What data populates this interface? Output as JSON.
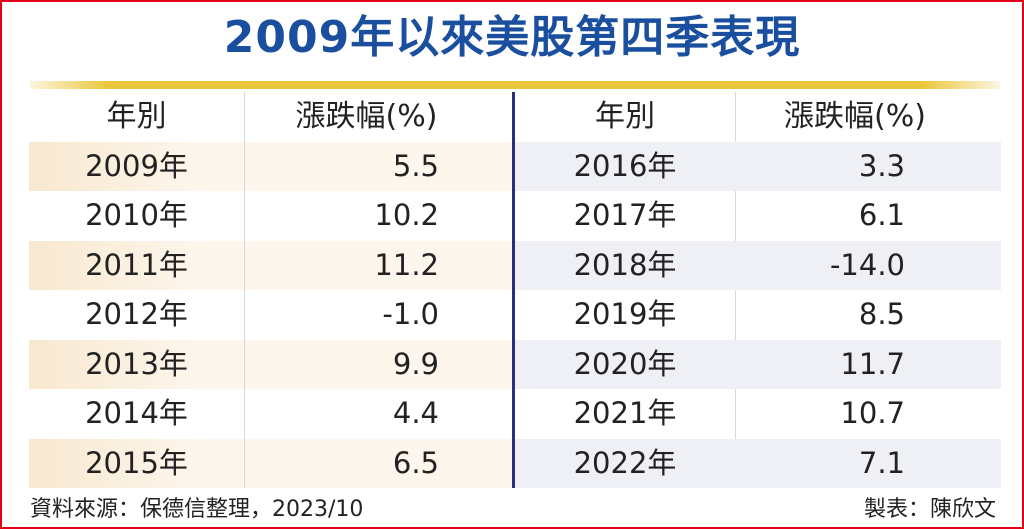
{
  "title": "2009年以來美股第四季表現",
  "headers": {
    "year": "年別",
    "change": "漲跌幅(%)"
  },
  "chart_data": {
    "type": "table",
    "title": "2009年以來美股第四季表現",
    "columns": [
      "年別",
      "漲跌幅(%)"
    ],
    "left_rows": [
      {
        "year": "2009年",
        "change": "5.5"
      },
      {
        "year": "2010年",
        "change": "10.2"
      },
      {
        "year": "2011年",
        "change": "11.2"
      },
      {
        "year": "2012年",
        "change": "-1.0"
      },
      {
        "year": "2013年",
        "change": "9.9"
      },
      {
        "year": "2014年",
        "change": "4.4"
      },
      {
        "year": "2015年",
        "change": "6.5"
      }
    ],
    "right_rows": [
      {
        "year": "2016年",
        "change": "3.3"
      },
      {
        "year": "2017年",
        "change": "6.1"
      },
      {
        "year": "2018年",
        "change": "-14.0"
      },
      {
        "year": "2019年",
        "change": "8.5"
      },
      {
        "year": "2020年",
        "change": "11.7"
      },
      {
        "year": "2021年",
        "change": "10.7"
      },
      {
        "year": "2022年",
        "change": "7.1"
      }
    ]
  },
  "footer": {
    "source": "資料來源：保德信整理，2023/10",
    "author": "製表：陳欣文"
  },
  "colors": {
    "title": "#1a4fa0",
    "border": "#e2001a",
    "rule": "#ecc73c",
    "divider": "#2b2f7f",
    "left_shade": "#fdf6ec",
    "right_shade": "#eef0f6"
  }
}
